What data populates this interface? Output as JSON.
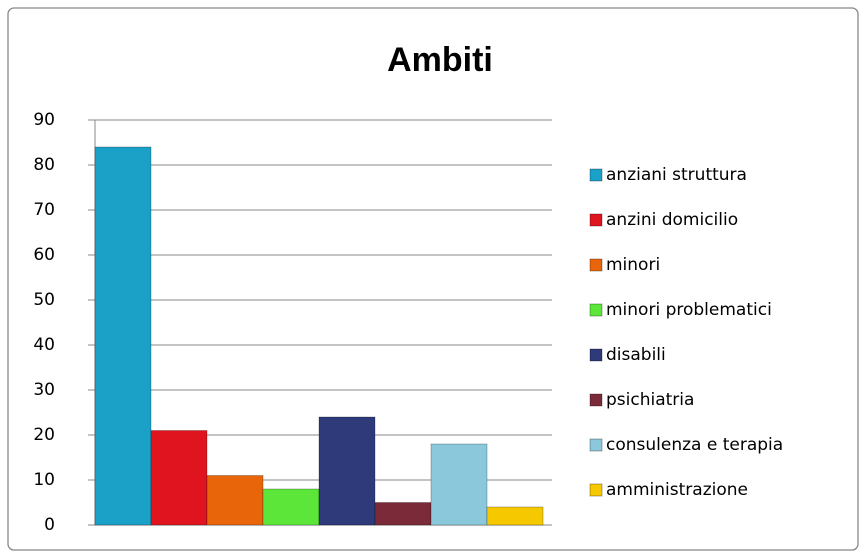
{
  "chart_data": {
    "type": "bar",
    "title": "Ambiti",
    "series": [
      {
        "name": "anziani struttura",
        "color": "#1ba1c8",
        "values": [
          84
        ]
      },
      {
        "name": "anzini domicilio",
        "color": "#e0141e",
        "values": [
          21
        ]
      },
      {
        "name": "minori",
        "color": "#e8650a",
        "values": [
          11
        ]
      },
      {
        "name": "minori problematici",
        "color": "#5ce63a",
        "values": [
          8
        ]
      },
      {
        "name": "disabili",
        "color": "#2e3a7a",
        "values": [
          24
        ]
      },
      {
        "name": "psichiatria",
        "color": "#7a2a38",
        "values": [
          5
        ]
      },
      {
        "name": "consulenza e terapia",
        "color": "#8cc8dc",
        "values": [
          18
        ]
      },
      {
        "name": "amministrazione",
        "color": "#f5c800",
        "values": [
          4
        ]
      }
    ],
    "ylim": [
      0,
      90
    ],
    "yticks": [
      0,
      10,
      20,
      30,
      40,
      50,
      60,
      70,
      80,
      90
    ],
    "grid": true,
    "legend": "right"
  }
}
